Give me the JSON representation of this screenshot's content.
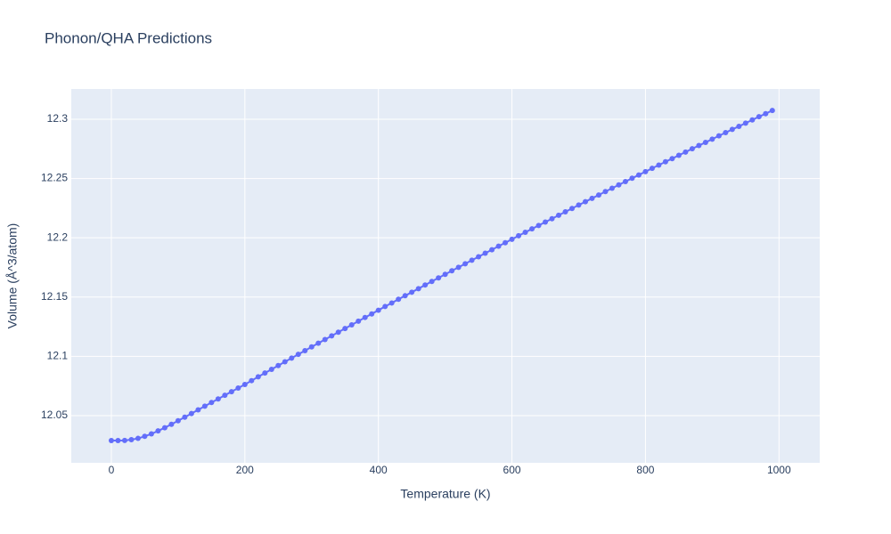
{
  "chart_data": {
    "type": "line",
    "title": "Phonon/QHA Predictions",
    "x_label": "Temperature (K)",
    "y_label": "Volume (Å^3/atom)",
    "series": [
      {
        "color": "#636efa",
        "x": [
          0,
          10,
          20,
          30,
          40,
          50,
          60,
          70,
          80,
          90,
          100,
          110,
          120,
          130,
          140,
          150,
          160,
          170,
          180,
          190,
          200,
          210,
          220,
          230,
          240,
          250,
          260,
          270,
          280,
          290,
          300,
          310,
          320,
          330,
          340,
          350,
          360,
          370,
          380,
          390,
          400,
          410,
          420,
          430,
          440,
          450,
          460,
          470,
          480,
          490,
          500,
          510,
          520,
          530,
          540,
          550,
          560,
          570,
          580,
          590,
          600,
          610,
          620,
          630,
          640,
          650,
          660,
          670,
          680,
          690,
          700,
          710,
          720,
          730,
          740,
          750,
          760,
          770,
          780,
          790,
          800,
          810,
          820,
          830,
          840,
          850,
          860,
          870,
          880,
          890,
          900,
          910,
          920,
          930,
          940,
          950,
          960,
          970,
          980,
          990
        ],
        "values": [
          12.029,
          12.029,
          12.0291,
          12.0297,
          12.0308,
          12.0325,
          12.0346,
          12.0371,
          12.0398,
          12.0427,
          12.0457,
          12.0487,
          12.0518,
          12.0549,
          12.058,
          12.0611,
          12.0641,
          12.0672,
          12.0702,
          12.0733,
          12.0763,
          12.0795,
          12.0827,
          12.0859,
          12.089,
          12.0922,
          12.0954,
          12.0985,
          12.1017,
          12.1048,
          12.108,
          12.1111,
          12.1142,
          12.1173,
          12.1204,
          12.1235,
          12.1266,
          12.1297,
          12.1328,
          12.1358,
          12.1389,
          12.142,
          12.145,
          12.1481,
          12.1511,
          12.1541,
          12.1571,
          12.1602,
          12.1632,
          12.1662,
          12.1692,
          12.1722,
          12.1751,
          12.1781,
          12.1811,
          12.184,
          12.187,
          12.1899,
          12.1929,
          12.1958,
          12.1987,
          12.2017,
          12.2046,
          12.2075,
          12.2104,
          12.2133,
          12.2161,
          12.219,
          12.2219,
          12.2247,
          12.2276,
          12.2304,
          12.2333,
          12.2361,
          12.239,
          12.2418,
          12.2446,
          12.2474,
          12.2502,
          12.253,
          12.2558,
          12.2586,
          12.2613,
          12.2641,
          12.2668,
          12.2696,
          12.2723,
          12.2751,
          12.2778,
          12.2805,
          12.2832,
          12.286,
          12.2887,
          12.2914,
          12.294,
          12.2967,
          12.2994,
          12.3021,
          12.3047,
          12.3074
        ]
      }
    ],
    "xlim": [
      -60,
      1061
    ],
    "ylim": [
      12.0102,
      12.3255
    ],
    "xticks": [
      0,
      200,
      400,
      600,
      800,
      1000
    ],
    "yticks": [
      12.05,
      12.1,
      12.15,
      12.2,
      12.25,
      12.3
    ],
    "grid": true,
    "background": "#e5ecf6"
  }
}
